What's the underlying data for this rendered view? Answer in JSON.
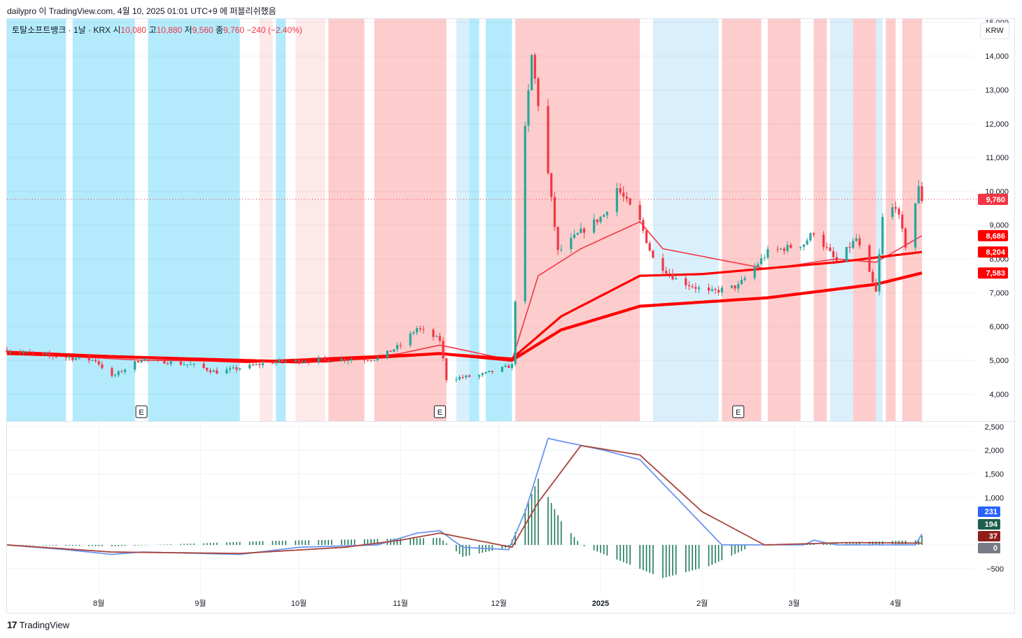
{
  "header": {
    "attribution": "dailypro 이 TradingView.com, 4월 10, 2025 01:01 UTC+9 에 퍼블리쉬했음"
  },
  "legend": {
    "symbol": "토탈소프트뱅크 · 1날 · KRX",
    "open_label": "시",
    "open": "10,080",
    "high_label": "고",
    "high": "10,880",
    "low_label": "저",
    "low": "9,560",
    "close_label": "종",
    "close": "9,760",
    "change": "−240 (−2.40%)"
  },
  "currency_button": "KRW",
  "footer": {
    "brand": "TradingView",
    "logo": "17"
  },
  "colors": {
    "up": "#26a69a",
    "down": "#f23645",
    "bull_bg": "#fdcdcd",
    "bull_bg_light": "#fde9ea",
    "bear_bg": "#b3ebfc",
    "bear_bg_light": "#d9effb",
    "macd": "#6c95ef",
    "signal": "#a8433c",
    "hist": "#1e7a5b",
    "ema_fast": "#f23645",
    "ema_slow": "#ff0000",
    "ma_tan": "#f2c59b",
    "ma_purple": "#8e7cf0"
  },
  "chart_data": [
    {
      "type": "candlestick",
      "title": "토탈소프트뱅크 · 1날 · KRX",
      "ylabel": "KRW",
      "y_ticks": [
        4000,
        5000,
        6000,
        7000,
        8000,
        9000,
        10000,
        11000,
        12000,
        13000,
        14000,
        15000
      ],
      "y_tick_labels": [
        "4,000",
        "5,000",
        "6,000",
        "7,000",
        "8,000",
        "9,000",
        "10,000",
        "11,000",
        "12,000",
        "13,000",
        "14,000",
        "15,000"
      ],
      "ylim": [
        3200,
        15100
      ],
      "x_ticks": [
        "8월",
        "9월",
        "10월",
        "11월",
        "12월",
        "2025",
        "2월",
        "3월",
        "4월"
      ],
      "x_tick_dates": [
        "2024-08-01",
        "2024-09-01",
        "2024-10-01",
        "2024-11-01",
        "2024-12-01",
        "2025-01-01",
        "2025-02-01",
        "2025-03-01",
        "2025-04-01"
      ],
      "x_range": [
        "2024-07-04",
        "2025-04-25"
      ],
      "last_price_line": 9760,
      "price_labels": [
        {
          "label": "9,760",
          "value": 9760,
          "color": "#f23645"
        },
        {
          "label": "8,686",
          "value": 8686,
          "color": "#ff0000"
        },
        {
          "label": "8,204",
          "value": 8204,
          "color": "#ff0000"
        },
        {
          "label": "7,583",
          "value": 7583,
          "color": "#ff0000"
        }
      ],
      "earnings_markers": [
        {
          "label": "E",
          "date": "2024-08-14"
        },
        {
          "label": "E",
          "date": "2024-11-13"
        },
        {
          "label": "E",
          "date": "2025-02-12"
        }
      ],
      "background_zones": [
        {
          "start": "2024-07-04",
          "end": "2024-07-22",
          "kind": "bear"
        },
        {
          "start": "2024-07-24",
          "end": "2024-08-12",
          "kind": "bear"
        },
        {
          "start": "2024-08-16",
          "end": "2024-09-13",
          "kind": "bear"
        },
        {
          "start": "2024-09-19",
          "end": "2024-09-23",
          "kind": "bull_light"
        },
        {
          "start": "2024-09-24",
          "end": "2024-09-27",
          "kind": "bear"
        },
        {
          "start": "2024-09-30",
          "end": "2024-10-09",
          "kind": "bull_light"
        },
        {
          "start": "2024-10-10",
          "end": "2024-10-21",
          "kind": "bull"
        },
        {
          "start": "2024-10-24",
          "end": "2024-11-15",
          "kind": "bull"
        },
        {
          "start": "2024-11-18",
          "end": "2024-11-22",
          "kind": "bear_light"
        },
        {
          "start": "2024-11-22",
          "end": "2024-11-25",
          "kind": "bear"
        },
        {
          "start": "2024-11-27",
          "end": "2024-12-05",
          "kind": "bear"
        },
        {
          "start": "2024-12-06",
          "end": "2025-01-13",
          "kind": "bull"
        },
        {
          "start": "2025-01-17",
          "end": "2025-02-06",
          "kind": "bear_light"
        },
        {
          "start": "2025-02-07",
          "end": "2025-02-19",
          "kind": "bull"
        },
        {
          "start": "2025-02-21",
          "end": "2025-03-03",
          "kind": "bull"
        },
        {
          "start": "2025-03-07",
          "end": "2025-03-11",
          "kind": "bull"
        },
        {
          "start": "2025-03-12",
          "end": "2025-03-19",
          "kind": "bear_light"
        },
        {
          "start": "2025-03-19",
          "end": "2025-03-26",
          "kind": "bull"
        },
        {
          "start": "2025-03-26",
          "end": "2025-03-28",
          "kind": "bear_light"
        },
        {
          "start": "2025-03-29",
          "end": "2025-04-01",
          "kind": "bull"
        },
        {
          "start": "2025-04-03",
          "end": "2025-04-09",
          "kind": "bull"
        }
      ],
      "ohlc_keypoints": [
        [
          "2024-07-04",
          5300
        ],
        [
          "2024-07-15",
          5150
        ],
        [
          "2024-07-31",
          5000
        ],
        [
          "2024-08-05",
          4500
        ],
        [
          "2024-08-14",
          5050
        ],
        [
          "2024-08-30",
          4850
        ],
        [
          "2024-09-06",
          4650
        ],
        [
          "2024-09-23",
          4950
        ],
        [
          "2024-10-04",
          5000
        ],
        [
          "2024-10-25",
          5050
        ],
        [
          "2024-11-01",
          5450
        ],
        [
          "2024-11-06",
          5950
        ],
        [
          "2024-11-13",
          5600
        ],
        [
          "2024-11-15",
          4450
        ],
        [
          "2024-11-25",
          4550
        ],
        [
          "2024-12-05",
          4850
        ],
        [
          "2024-12-06",
          6800
        ],
        [
          "2024-12-09",
          11800
        ],
        [
          "2024-12-11",
          14000
        ],
        [
          "2024-12-16",
          10500
        ],
        [
          "2024-12-19",
          8200
        ],
        [
          "2024-12-26",
          8800
        ],
        [
          "2025-01-02",
          9300
        ],
        [
          "2025-01-06",
          10100
        ],
        [
          "2025-01-13",
          9100
        ],
        [
          "2025-01-17",
          8000
        ],
        [
          "2025-01-24",
          7400
        ],
        [
          "2025-02-03",
          7000
        ],
        [
          "2025-02-12",
          7200
        ],
        [
          "2025-02-21",
          8200
        ],
        [
          "2025-03-04",
          8450
        ],
        [
          "2025-03-07",
          8800
        ],
        [
          "2025-03-14",
          7900
        ],
        [
          "2025-03-20",
          8600
        ],
        [
          "2025-03-26",
          7000
        ],
        [
          "2025-03-28",
          9200
        ],
        [
          "2025-04-01",
          9600
        ],
        [
          "2025-04-04",
          8400
        ],
        [
          "2025-04-08",
          10080
        ],
        [
          "2025-04-09",
          9760
        ]
      ],
      "series": [
        {
          "name": "",
          "kind": "ema",
          "color": "#f23645",
          "points": [
            [
              "2024-07-04",
              5200
            ],
            [
              "2024-08-15",
              5000
            ],
            [
              "2024-10-10",
              4950
            ],
            [
              "2024-11-01",
              5200
            ],
            [
              "2024-11-13",
              5450
            ],
            [
              "2024-12-05",
              5000
            ],
            [
              "2024-12-13",
              7500
            ],
            [
              "2024-12-26",
              8300
            ],
            [
              "2025-01-13",
              9100
            ],
            [
              "2025-01-20",
              8300
            ],
            [
              "2025-02-21",
              7700
            ],
            [
              "2025-03-14",
              8000
            ],
            [
              "2025-03-26",
              7900
            ],
            [
              "2025-04-09",
              8686
            ]
          ]
        },
        {
          "name": "",
          "kind": "ema",
          "color": "#ff0000",
          "points": [
            [
              "2024-07-04",
              5250
            ],
            [
              "2024-09-15",
              4950
            ],
            [
              "2024-11-13",
              5200
            ],
            [
              "2024-12-05",
              5050
            ],
            [
              "2024-12-20",
              6300
            ],
            [
              "2025-01-13",
              7500
            ],
            [
              "2025-02-01",
              7550
            ],
            [
              "2025-03-14",
              7900
            ],
            [
              "2025-04-09",
              8204
            ]
          ]
        },
        {
          "name": "",
          "kind": "ema",
          "color": "#ff0000",
          "points": [
            [
              "2024-07-04",
              5200
            ],
            [
              "2024-10-01",
              4950
            ],
            [
              "2024-11-13",
              5200
            ],
            [
              "2024-12-05",
              5000
            ],
            [
              "2024-12-20",
              5900
            ],
            [
              "2025-01-13",
              6600
            ],
            [
              "2025-02-21",
              6850
            ],
            [
              "2025-03-26",
              7250
            ],
            [
              "2025-04-09",
              7583
            ]
          ]
        }
      ]
    },
    {
      "type": "line",
      "title": "",
      "y_ticks": [
        -500,
        1000,
        1500,
        2000,
        2500
      ],
      "y_tick_labels": [
        "−500",
        "1,000",
        "1,500",
        "2,000",
        "2,500"
      ],
      "ylim": [
        -1050,
        2600
      ],
      "value_labels": [
        {
          "label": "231",
          "color": "#2962ff"
        },
        {
          "label": "194",
          "color": "#1e5f4c"
        },
        {
          "label": "37",
          "color": "#8e1f1a"
        },
        {
          "label": "0",
          "color": "#787b86"
        }
      ],
      "series": [
        {
          "name": "",
          "kind": "macd",
          "color": "#6c95ef",
          "points": [
            [
              "2024-07-04",
              0
            ],
            [
              "2024-07-22",
              -100
            ],
            [
              "2024-08-05",
              -200
            ],
            [
              "2024-08-14",
              -150
            ],
            [
              "2024-09-13",
              -200
            ],
            [
              "2024-10-01",
              -50
            ],
            [
              "2024-10-25",
              0
            ],
            [
              "2024-11-06",
              250
            ],
            [
              "2024-11-13",
              300
            ],
            [
              "2024-11-20",
              -50
            ],
            [
              "2024-12-04",
              -100
            ],
            [
              "2024-12-09",
              700
            ],
            [
              "2024-12-16",
              2250
            ],
            [
              "2025-01-02",
              2000
            ],
            [
              "2025-01-13",
              1800
            ],
            [
              "2025-02-07",
              0
            ],
            [
              "2025-03-04",
              0
            ],
            [
              "2025-03-07",
              100
            ],
            [
              "2025-03-14",
              0
            ],
            [
              "2025-04-07",
              0
            ],
            [
              "2025-04-09",
              231
            ]
          ]
        },
        {
          "name": "",
          "kind": "signal",
          "color": "#a8433c",
          "points": [
            [
              "2024-07-04",
              0
            ],
            [
              "2024-08-05",
              -150
            ],
            [
              "2024-09-13",
              -180
            ],
            [
              "2024-10-15",
              -50
            ],
            [
              "2024-11-01",
              100
            ],
            [
              "2024-11-13",
              250
            ],
            [
              "2024-12-05",
              -50
            ],
            [
              "2024-12-13",
              900
            ],
            [
              "2024-12-26",
              2100
            ],
            [
              "2025-01-13",
              1900
            ],
            [
              "2025-02-01",
              700
            ],
            [
              "2025-02-20",
              0
            ],
            [
              "2025-03-18",
              50
            ],
            [
              "2025-04-09",
              37
            ]
          ]
        },
        {
          "name": "",
          "kind": "histogram",
          "color": "#1e7a5b",
          "points": [
            [
              "2024-07-04",
              0
            ],
            [
              "2024-08-05",
              -30
            ],
            [
              "2024-09-20",
              80
            ],
            [
              "2024-11-13",
              150
            ],
            [
              "2024-11-20",
              -250
            ],
            [
              "2024-12-04",
              -50
            ],
            [
              "2024-12-13",
              1400
            ],
            [
              "2024-12-20",
              500
            ],
            [
              "2024-12-26",
              0
            ],
            [
              "2025-01-20",
              -700
            ],
            [
              "2025-02-03",
              -450
            ],
            [
              "2025-02-17",
              0
            ],
            [
              "2025-04-08",
              100
            ],
            [
              "2025-04-09",
              194
            ]
          ]
        }
      ],
      "x_ticks": [
        "8월",
        "9월",
        "10월",
        "11월",
        "12월",
        "2025",
        "2월",
        "3월",
        "4월"
      ]
    }
  ]
}
